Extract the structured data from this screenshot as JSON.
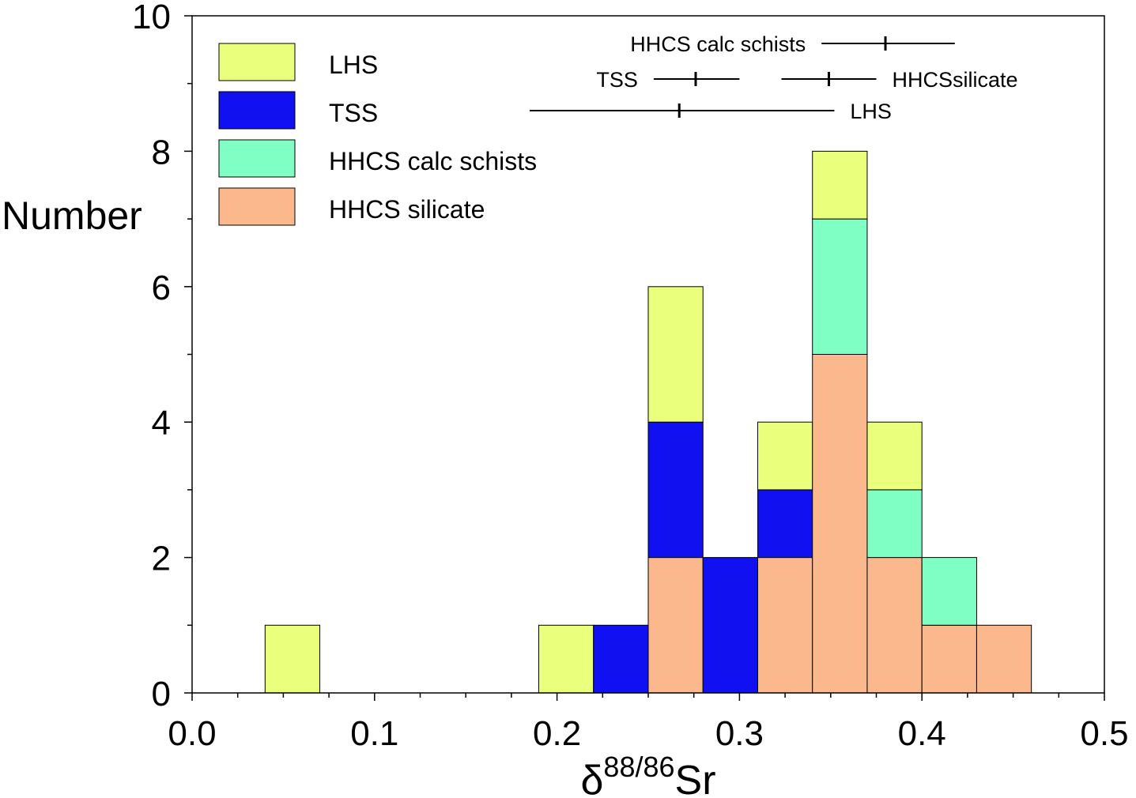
{
  "chart_data": {
    "type": "bar",
    "stacked": true,
    "title": "",
    "ylabel": "Number",
    "xlabel": {
      "base": "δ",
      "superscript": "88/86",
      "suffix": "Sr"
    },
    "xlim": [
      0.0,
      0.5
    ],
    "ylim": [
      0,
      10
    ],
    "x_ticks": [
      "0.0",
      "0.1",
      "0.2",
      "0.3",
      "0.4",
      "0.5"
    ],
    "y_ticks": [
      "0",
      "2",
      "4",
      "6",
      "8",
      "10"
    ],
    "grid": false,
    "legend_position": "top-left",
    "bin_width": 0.03,
    "bins": [
      [
        0.04,
        0.07
      ],
      [
        0.19,
        0.22
      ],
      [
        0.22,
        0.25
      ],
      [
        0.25,
        0.28
      ],
      [
        0.28,
        0.31
      ],
      [
        0.31,
        0.34
      ],
      [
        0.34,
        0.37
      ],
      [
        0.37,
        0.4
      ],
      [
        0.4,
        0.43
      ],
      [
        0.43,
        0.46
      ]
    ],
    "series": [
      {
        "name": "HHCS silicate",
        "color": "#fbb88c",
        "values": [
          0,
          0,
          0,
          2,
          0,
          2,
          5,
          2,
          1,
          1
        ]
      },
      {
        "name": "TSS",
        "color": "#1010f0",
        "values": [
          0,
          0,
          1,
          2,
          2,
          1,
          0,
          0,
          0,
          0
        ]
      },
      {
        "name": "HHCS calc schists",
        "color": "#80ffc4",
        "values": [
          0,
          0,
          0,
          0,
          0,
          0,
          2,
          1,
          1,
          0
        ]
      },
      {
        "name": "LHS",
        "color": "#eaff7c",
        "values": [
          1,
          1,
          0,
          2,
          0,
          1,
          1,
          1,
          0,
          0
        ]
      }
    ],
    "legend_order": [
      "LHS",
      "TSS",
      "HHCS calc schists",
      "HHCS silicate"
    ],
    "mean_ranges": [
      {
        "label": "HHCS calc schists",
        "label_side": "left",
        "mean": 0.38,
        "min": 0.345,
        "max": 0.418
      },
      {
        "label": "TSS",
        "label_side": "left",
        "mean": 0.276,
        "min": 0.253,
        "max": 0.3
      },
      {
        "label": "HHCSsilicate",
        "label_side": "right",
        "mean": 0.349,
        "min": 0.323,
        "max": 0.375
      },
      {
        "label": "LHS",
        "label_side": "right",
        "mean": 0.267,
        "min": 0.185,
        "max": 0.352
      }
    ]
  }
}
